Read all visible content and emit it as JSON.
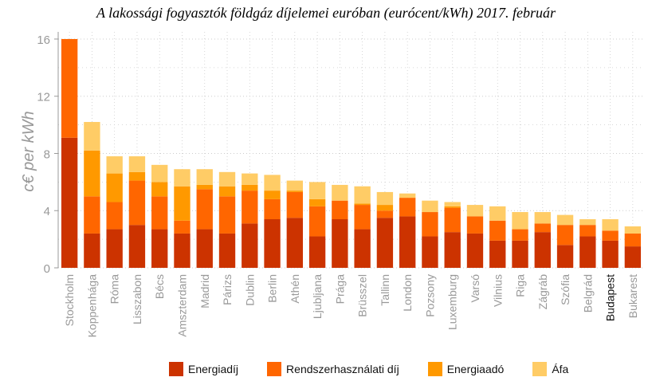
{
  "chart_data": {
    "type": "bar",
    "stacked": true,
    "title": "A lakossági fogyasztók földgáz díjelemei euróban (eurócent/kWh) 2017. február",
    "ylabel": "c€ per kWh",
    "xlabel": "",
    "ylim": [
      0,
      16.5
    ],
    "yticks": [
      0,
      4,
      8,
      12,
      16
    ],
    "grid": true,
    "legend_position": "bottom",
    "categories": [
      "Stockholm",
      "Koppenhága",
      "Róma",
      "Lisszabon",
      "Bécs",
      "Amszterdam",
      "Madrid",
      "Párizs",
      "Dublin",
      "Berlin",
      "Athén",
      "Ljubljana",
      "Prága",
      "Brüsszel",
      "Tallinn",
      "London",
      "Pozsony",
      "Luxemburg",
      "Varsó",
      "Vilnius",
      "Riga",
      "Zágráb",
      "Szófia",
      "Belgrád",
      "Budapest",
      "Bukarest"
    ],
    "highlight_categories": [
      "Budapest"
    ],
    "series": [
      {
        "name": "Energiadíj",
        "color": "#cc3300",
        "values": [
          9.1,
          2.4,
          2.7,
          3.0,
          2.7,
          2.4,
          2.7,
          2.4,
          3.1,
          3.4,
          3.5,
          2.2,
          3.4,
          2.7,
          3.5,
          3.6,
          2.2,
          2.5,
          2.4,
          1.9,
          1.9,
          2.5,
          1.6,
          2.2,
          1.9,
          1.5
        ]
      },
      {
        "name": "Rendszerhasználati díj",
        "color": "#ff6600",
        "values": [
          6.9,
          2.6,
          1.9,
          3.1,
          2.3,
          0.9,
          2.8,
          2.6,
          2.3,
          1.4,
          1.8,
          2.1,
          1.3,
          1.7,
          0.5,
          1.3,
          1.7,
          1.7,
          1.2,
          1.4,
          0.8,
          0.6,
          1.4,
          0.8,
          0.7,
          0.9
        ]
      },
      {
        "name": "Energiaadó",
        "color": "#ff9900",
        "values": [
          0,
          3.2,
          2.0,
          0.6,
          1.0,
          2.4,
          0.3,
          0.7,
          0.4,
          0.6,
          0.1,
          0.5,
          0,
          0.1,
          0.4,
          0,
          0,
          0.1,
          0,
          0,
          0,
          0,
          0,
          0,
          0,
          0
        ]
      },
      {
        "name": "Áfa",
        "color": "#ffcc66",
        "values": [
          0,
          2.0,
          1.2,
          1.1,
          1.2,
          1.2,
          1.1,
          1.0,
          0.8,
          1.1,
          0.7,
          1.2,
          1.1,
          1.2,
          0.9,
          0.3,
          0.8,
          0.3,
          0.8,
          1.0,
          1.2,
          0.8,
          0.7,
          0.4,
          0.8,
          0.5
        ]
      }
    ]
  }
}
